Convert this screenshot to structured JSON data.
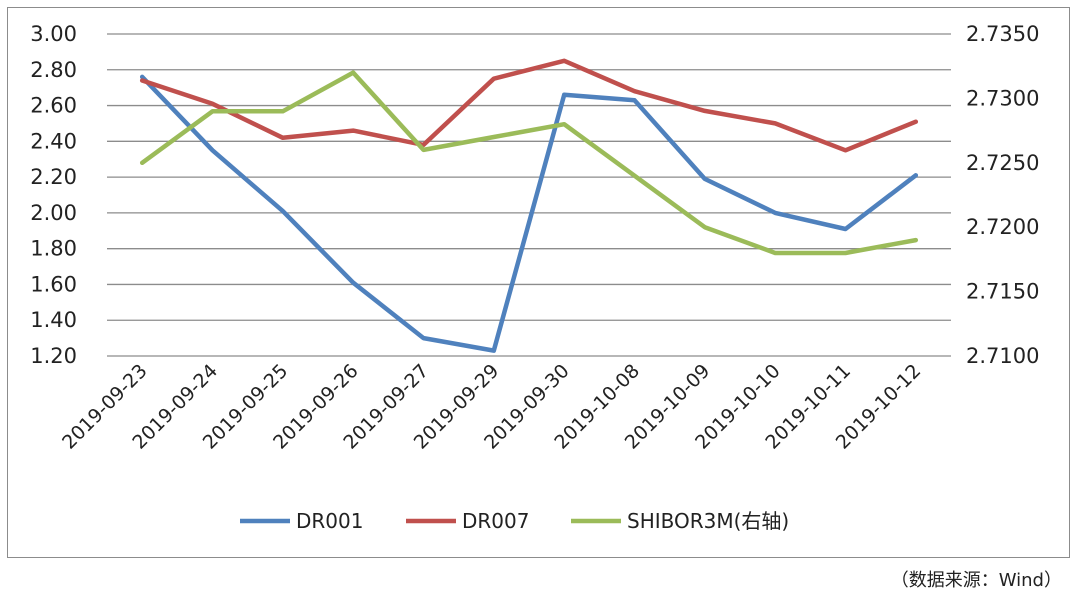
{
  "chart_data": {
    "type": "line",
    "categories": [
      "2019-09-23",
      "2019-09-24",
      "2019-09-25",
      "2019-09-26",
      "2019-09-27",
      "2019-09-29",
      "2019-09-30",
      "2019-10-08",
      "2019-10-09",
      "2019-10-10",
      "2019-10-11",
      "2019-10-12"
    ],
    "left_axis": {
      "ylim": [
        1.2,
        3.0
      ],
      "ticks": [
        "1.20",
        "1.40",
        "1.60",
        "1.80",
        "2.00",
        "2.20",
        "2.40",
        "2.60",
        "2.80",
        "3.00"
      ]
    },
    "right_axis": {
      "ylim": [
        2.71,
        2.735
      ],
      "ticks": [
        "2.7100",
        "2.7150",
        "2.7200",
        "2.7250",
        "2.7300",
        "2.7350"
      ]
    },
    "series": [
      {
        "name": "DR001",
        "axis": "left",
        "color": "#4f81bd",
        "values": [
          2.76,
          2.35,
          2.01,
          1.61,
          1.3,
          1.23,
          2.66,
          2.63,
          2.19,
          2.0,
          1.91,
          2.21
        ]
      },
      {
        "name": "DR007",
        "axis": "left",
        "color": "#c0504d",
        "values": [
          2.74,
          2.61,
          2.42,
          2.46,
          2.38,
          2.75,
          2.85,
          2.68,
          2.57,
          2.5,
          2.35,
          2.51
        ]
      },
      {
        "name": "SHIBOR3M(右轴)",
        "axis": "right",
        "color": "#9bbb59",
        "values": [
          2.725,
          2.729,
          2.729,
          2.732,
          2.726,
          2.727,
          2.728,
          2.724,
          2.72,
          2.718,
          2.718,
          2.719
        ]
      }
    ],
    "grid": true,
    "legend_position": "bottom"
  },
  "source_note": "（数据来源：Wind）"
}
